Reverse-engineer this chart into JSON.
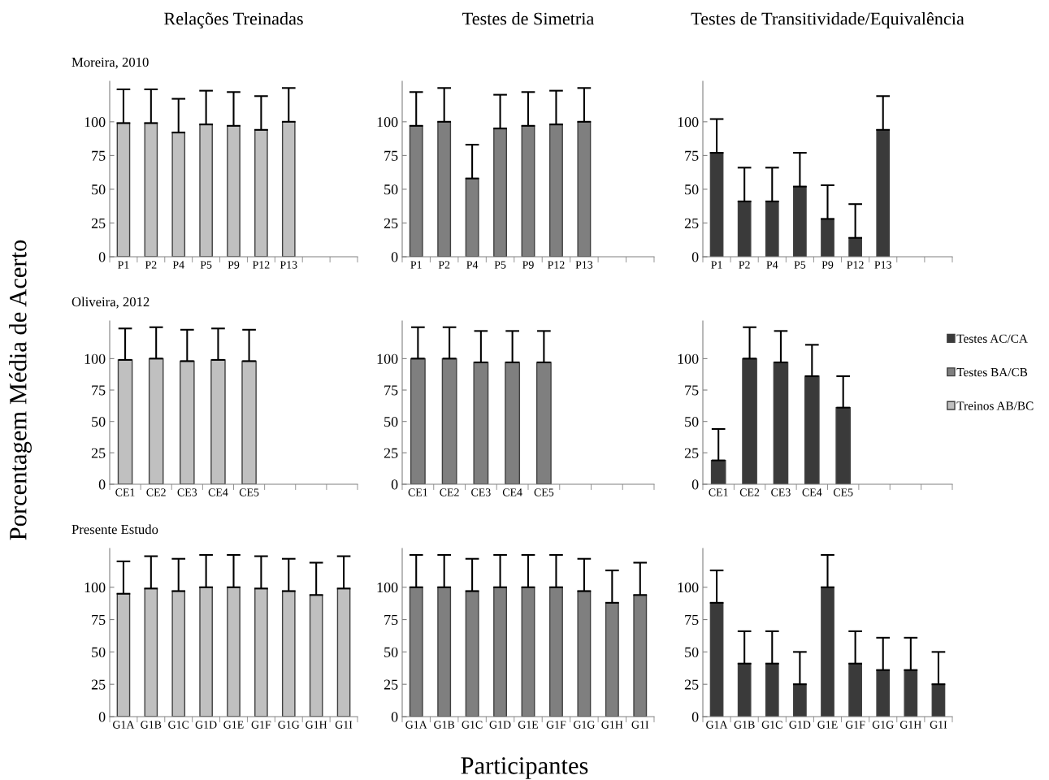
{
  "chart_data": [
    {
      "type": "bar",
      "title": "Relações Treinadas",
      "subtitle": "Moreira, 2010",
      "categories": [
        "P1",
        "P2",
        "P4",
        "P5",
        "P9",
        "P12",
        "P13",
        null,
        null
      ],
      "series": [
        {
          "color": "#c0c0c0",
          "values": [
            99,
            99,
            92,
            98,
            97,
            94,
            100,
            null,
            null
          ],
          "errors": [
            [
              99,
              124
            ],
            [
              99,
              124
            ],
            [
              92,
              117
            ],
            [
              98,
              123
            ],
            [
              97,
              122
            ],
            [
              94,
              119
            ],
            [
              100,
              125
            ],
            null,
            null
          ]
        }
      ],
      "ylim": [
        0,
        130
      ],
      "yticks": [
        0,
        25,
        50,
        75,
        100
      ]
    },
    {
      "type": "bar",
      "title": "Testes de Simetria",
      "categories": [
        "P1",
        "P2",
        "P4",
        "P5",
        "P9",
        "P12",
        "P13",
        null,
        null
      ],
      "series": [
        {
          "color": "#7f7f7f",
          "values": [
            97,
            100,
            58,
            95,
            97,
            98,
            100,
            null,
            null
          ],
          "errors": [
            [
              97,
              122
            ],
            [
              100,
              125
            ],
            [
              58,
              83
            ],
            [
              95,
              120
            ],
            [
              97,
              122
            ],
            [
              98,
              123
            ],
            [
              100,
              125
            ],
            null,
            null
          ]
        }
      ],
      "ylim": [
        0,
        130
      ],
      "yticks": [
        0,
        25,
        50,
        75,
        100
      ]
    },
    {
      "type": "bar",
      "title": "Testes de Transitividade/Equivalência",
      "categories": [
        "P1",
        "P2",
        "P4",
        "P5",
        "P9",
        "P12",
        "P13",
        null,
        null
      ],
      "series": [
        {
          "color": "#3a3a3a",
          "values": [
            77,
            41,
            41,
            52,
            28,
            14,
            94,
            null,
            null
          ],
          "errors": [
            [
              77,
              102
            ],
            [
              41,
              66
            ],
            [
              41,
              66
            ],
            [
              52,
              77
            ],
            [
              28,
              53
            ],
            [
              14,
              39
            ],
            [
              94,
              119
            ],
            null,
            null
          ]
        }
      ],
      "ylim": [
        0,
        130
      ],
      "yticks": [
        0,
        25,
        50,
        75,
        100
      ]
    },
    {
      "type": "bar",
      "subtitle": "Oliveira, 2012",
      "ylabel": "Porcentagem Média de Acerto",
      "categories": [
        "CE1",
        "CE2",
        "CE3",
        "CE4",
        "CE5",
        null,
        null,
        null
      ],
      "series": [
        {
          "name": "Treinos AB/BC",
          "color": "#c0c0c0",
          "values": [
            99,
            100,
            98,
            99,
            98,
            null,
            null,
            null
          ],
          "errors": [
            [
              99,
              124
            ],
            [
              100,
              125
            ],
            [
              98,
              123
            ],
            [
              99,
              124
            ],
            [
              98,
              123
            ],
            null,
            null,
            null
          ]
        }
      ],
      "ylim": [
        0,
        130
      ],
      "yticks": [
        0,
        25,
        50,
        75,
        100
      ]
    },
    {
      "type": "bar",
      "categories": [
        "CE1",
        "CE2",
        "CE3",
        "CE4",
        "CE5",
        null,
        null,
        null
      ],
      "series": [
        {
          "name": "Testes BA/CB",
          "color": "#7f7f7f",
          "values": [
            100,
            100,
            97,
            97,
            97,
            null,
            null,
            null
          ],
          "errors": [
            [
              100,
              125
            ],
            [
              100,
              125
            ],
            [
              97,
              122
            ],
            [
              97,
              122
            ],
            [
              97,
              122
            ],
            null,
            null,
            null
          ]
        }
      ],
      "ylim": [
        0,
        130
      ],
      "yticks": [
        0,
        25,
        50,
        75,
        100
      ]
    },
    {
      "type": "bar",
      "categories": [
        "CE1",
        "CE2",
        "CE3",
        "CE4",
        "CE5",
        null,
        null,
        null
      ],
      "legend": "right",
      "series": [
        {
          "name": "Testes AC/CA",
          "color": "#3a3a3a",
          "values": [
            19,
            100,
            97,
            86,
            61,
            null,
            null,
            null
          ],
          "errors": [
            [
              19,
              44
            ],
            [
              100,
              125
            ],
            [
              97,
              122
            ],
            [
              86,
              111
            ],
            [
              61,
              86
            ],
            null,
            null,
            null
          ]
        }
      ],
      "ylim": [
        0,
        130
      ],
      "yticks": [
        0,
        25,
        50,
        75,
        100
      ]
    },
    {
      "type": "bar",
      "subtitle": "Presente Estudo",
      "categories": [
        "G1A",
        "G1B",
        "G1C",
        "G1D",
        "G1E",
        "G1F",
        "G1G",
        "G1H",
        "G1I"
      ],
      "series": [
        {
          "color": "#c0c0c0",
          "values": [
            95,
            99,
            97,
            100,
            100,
            99,
            97,
            94,
            99
          ],
          "errors": [
            [
              95,
              120
            ],
            [
              99,
              124
            ],
            [
              97,
              122
            ],
            [
              100,
              125
            ],
            [
              100,
              125
            ],
            [
              99,
              124
            ],
            [
              97,
              122
            ],
            [
              94,
              119
            ],
            [
              99,
              124
            ]
          ]
        }
      ],
      "ylim": [
        0,
        130
      ],
      "yticks": [
        0,
        25,
        50,
        75,
        100
      ]
    },
    {
      "type": "bar",
      "xlabel": "Participantes",
      "categories": [
        "G1A",
        "G1B",
        "G1C",
        "G1D",
        "G1E",
        "G1F",
        "G1G",
        "G1H",
        "G1I"
      ],
      "series": [
        {
          "color": "#7f7f7f",
          "values": [
            100,
            100,
            97,
            100,
            100,
            100,
            97,
            88,
            94
          ],
          "errors": [
            [
              100,
              125
            ],
            [
              100,
              125
            ],
            [
              97,
              122
            ],
            [
              100,
              125
            ],
            [
              100,
              125
            ],
            [
              100,
              125
            ],
            [
              97,
              122
            ],
            [
              88,
              113
            ],
            [
              94,
              119
            ]
          ]
        }
      ],
      "ylim": [
        0,
        130
      ],
      "yticks": [
        0,
        25,
        50,
        75,
        100
      ]
    },
    {
      "type": "bar",
      "categories": [
        "G1A",
        "G1B",
        "G1C",
        "G1D",
        "G1E",
        "G1F",
        "G1G",
        "G1H",
        "G1I"
      ],
      "series": [
        {
          "color": "#3a3a3a",
          "values": [
            88,
            41,
            41,
            25,
            100,
            41,
            36,
            36,
            25
          ],
          "errors": [
            [
              88,
              113
            ],
            [
              41,
              66
            ],
            [
              41,
              66
            ],
            [
              25,
              50
            ],
            [
              100,
              125
            ],
            [
              41,
              66
            ],
            [
              36,
              61
            ],
            [
              36,
              61
            ],
            [
              25,
              50
            ]
          ]
        }
      ],
      "ylim": [
        0,
        130
      ],
      "yticks": [
        0,
        25,
        50,
        75,
        100
      ]
    }
  ]
}
